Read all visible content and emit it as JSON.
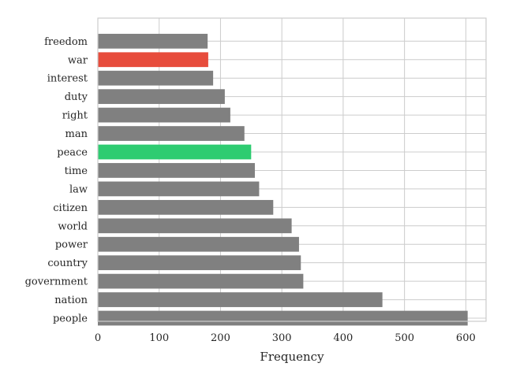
{
  "chart_data": {
    "type": "bar",
    "orientation": "horizontal",
    "categories": [
      "freedom",
      "war",
      "interest",
      "duty",
      "right",
      "man",
      "peace",
      "time",
      "law",
      "citizen",
      "world",
      "power",
      "country",
      "government",
      "nation",
      "people"
    ],
    "values": [
      179,
      180,
      188,
      207,
      216,
      239,
      250,
      256,
      263,
      286,
      316,
      328,
      331,
      335,
      464,
      603
    ],
    "bar_colors": [
      "#808080",
      "#e74c3c",
      "#808080",
      "#808080",
      "#808080",
      "#808080",
      "#2ecc71",
      "#808080",
      "#808080",
      "#808080",
      "#808080",
      "#808080",
      "#808080",
      "#808080",
      "#808080",
      "#808080"
    ],
    "xlabel": "Frequency",
    "ylabel": "",
    "title": "",
    "xlim": [
      0,
      633
    ],
    "xticks": [
      0,
      100,
      200,
      300,
      400,
      500,
      600
    ],
    "grid": true,
    "legend": "none"
  }
}
